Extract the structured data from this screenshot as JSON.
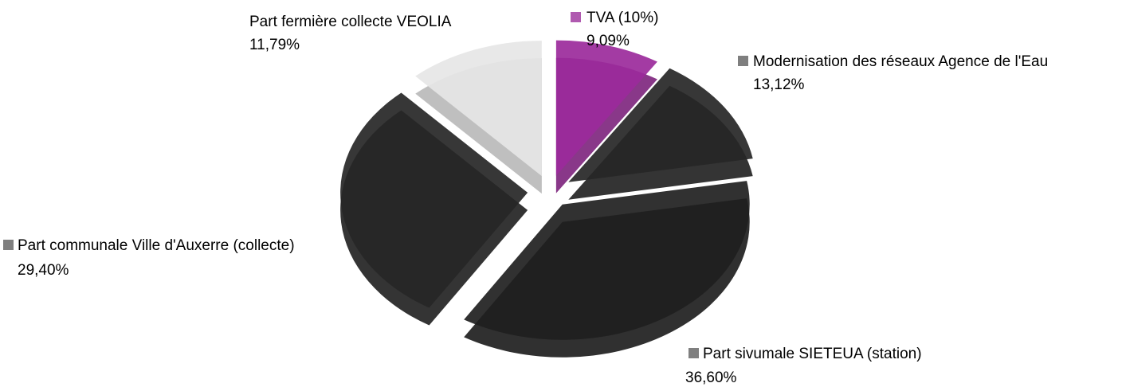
{
  "chart_data": {
    "type": "pie",
    "categories": [
      "TVA (10%)",
      "Modernisation des réseaux Agence de l'Eau",
      "Part sivumale SIETEUA (station)",
      "Part communale Ville d'Auxerre (collecte)",
      "Part fermière collecte VEOLIA"
    ],
    "values": [
      9.09,
      13.12,
      36.6,
      29.4,
      11.79
    ],
    "value_labels": [
      "9,09%",
      "13,12%",
      "36,60%",
      "29,40%",
      "11,79%"
    ],
    "colors": [
      "#9b2a9b",
      "#262626",
      "#1f1f1f",
      "#262626",
      "#e6e6e6"
    ]
  }
}
